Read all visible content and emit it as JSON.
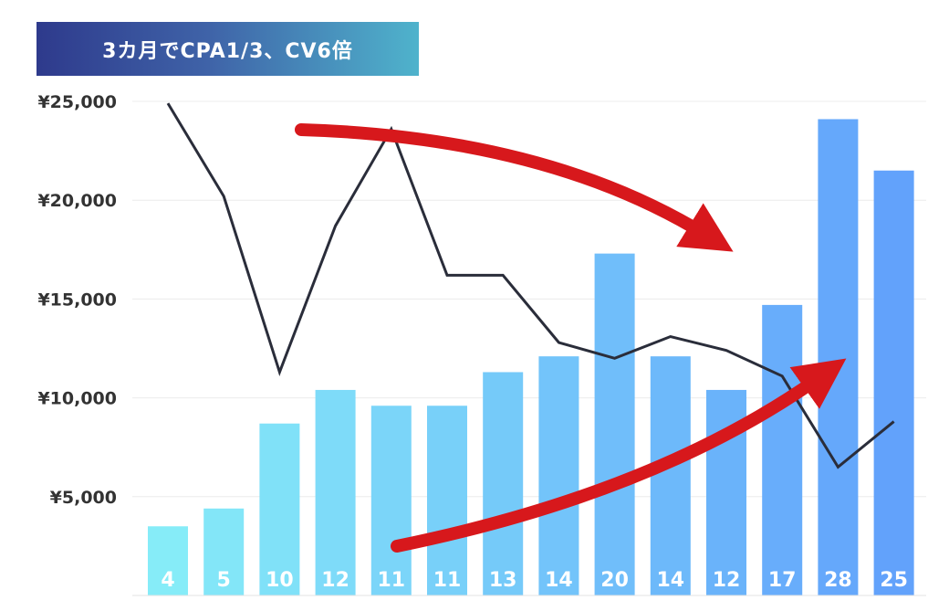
{
  "chart_data": {
    "type": "bar",
    "title": "3カ月でCPA1/3、CV6倍",
    "xlabel": "",
    "ylabel": "",
    "ylim": [
      0,
      25000
    ],
    "y_ticks": [
      "¥5,000",
      "¥10,000",
      "¥15,000",
      "¥20,000",
      "¥25,000"
    ],
    "y_tick_values": [
      5000,
      10000,
      15000,
      20000,
      25000
    ],
    "grid": true,
    "bar_labels": [
      "4",
      "5",
      "10",
      "12",
      "11",
      "11",
      "13",
      "14",
      "20",
      "14",
      "12",
      "17",
      "28",
      "25"
    ],
    "series": [
      {
        "type": "bar",
        "values": [
          3500,
          4400,
          8700,
          10400,
          9600,
          9600,
          11300,
          12100,
          17300,
          12100,
          10400,
          14700,
          24100,
          21500
        ],
        "color_start": "#86ecf8",
        "color_end": "#62a2fb"
      },
      {
        "type": "line",
        "values": [
          24900,
          20200,
          11300,
          18700,
          23600,
          16200,
          16200,
          12800,
          12000,
          13100,
          12400,
          11100,
          6500,
          8800
        ],
        "color": "#2a2d3a"
      }
    ],
    "annotations": [
      {
        "type": "arrow",
        "direction": "down",
        "color": "#d7181c"
      },
      {
        "type": "arrow",
        "direction": "up",
        "color": "#d7181c"
      }
    ]
  }
}
